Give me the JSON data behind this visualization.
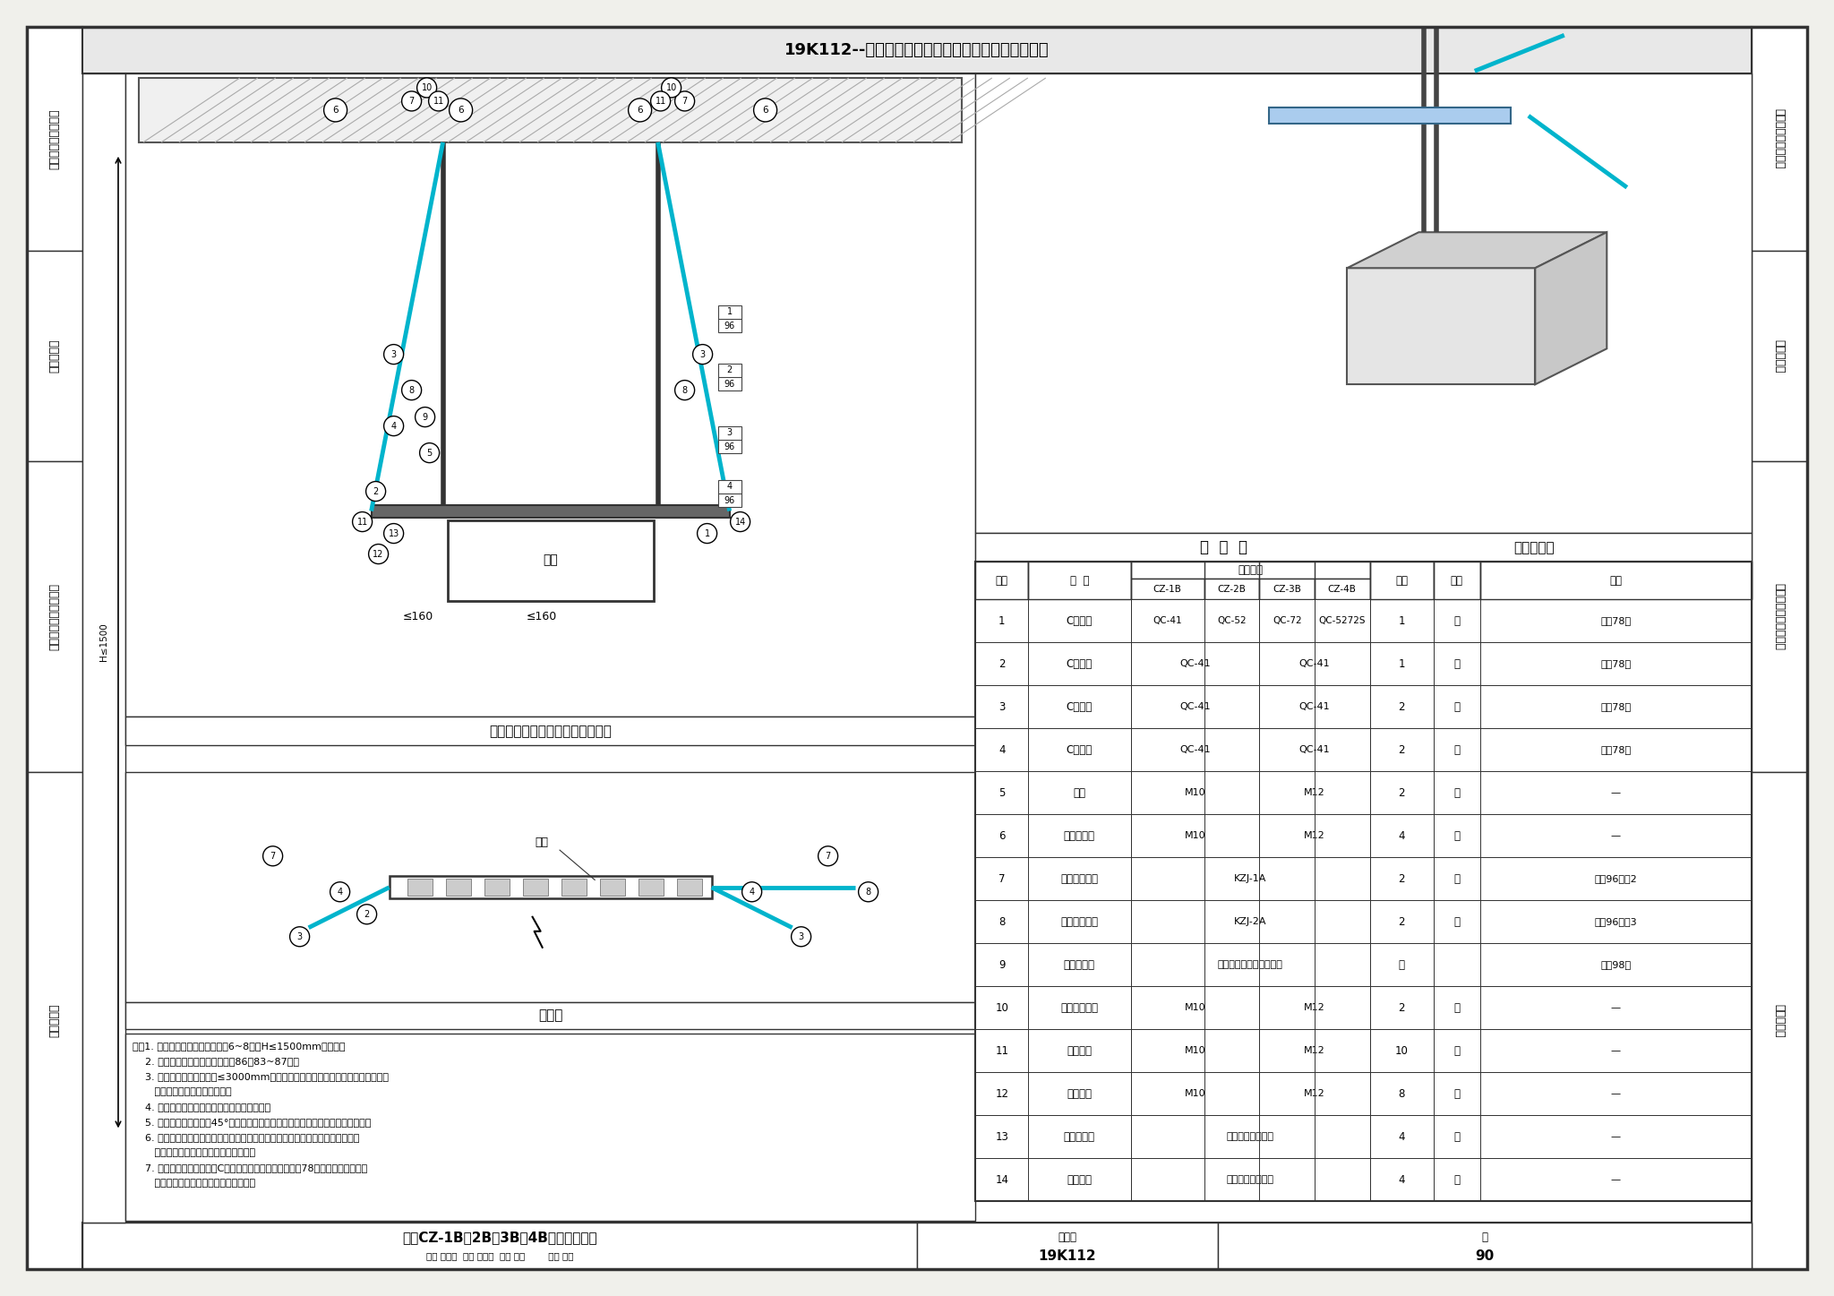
{
  "page_bg": "#f0f0eb",
  "content_bg": "#ffffff",
  "title_text": "19K112--金属、非金属风管支吸架（含抗震支吸架）",
  "left_sidebar_sections": [
    [
      "目录、总说明及图例",
      0.18
    ],
    [
      "传统支吸架",
      0.17
    ],
    [
      "金属风管装配式支吸架",
      0.25
    ],
    [
      "抗震支吸架",
      0.4
    ]
  ],
  "front_view_title": "矩形风管双侧向抗震支吸架正视图",
  "top_view_title": "俧视图",
  "table_title": "材  料  表",
  "td3_title": "三维示意图",
  "spec_sub_headers": [
    "CZ-1B",
    "CZ-2B",
    "CZ-3B",
    "CZ-4B"
  ],
  "table_rows": [
    [
      "1",
      "C型槽锂",
      "QC-41",
      "QC-52",
      "QC-72",
      "QC-5272S",
      "1",
      "件",
      "见由78页"
    ],
    [
      "2",
      "C型槽锂",
      "QC-41",
      "",
      "QC-41",
      "",
      "1",
      "件",
      "见由78页"
    ],
    [
      "3",
      "C型槽锂",
      "QC-41",
      "",
      "QC-41",
      "",
      "2",
      "件",
      "见由78页"
    ],
    [
      "4",
      "C型槽锂",
      "QC-41",
      "",
      "QC-41",
      "",
      "2",
      "件",
      "见由78页"
    ],
    [
      "5",
      "贓杆",
      "M10",
      "",
      "M12",
      "",
      "2",
      "件",
      "—"
    ],
    [
      "6",
      "扩底型锶栓",
      "M10",
      "",
      "M12",
      "",
      "4",
      "套",
      "—"
    ],
    [
      "7",
      "抗震连接构件",
      "KZJ-1A",
      "",
      "",
      "",
      "2",
      "套",
      "见由96页图2"
    ],
    [
      "8",
      "抗震连接构件",
      "KZJ-2A",
      "",
      "",
      "",
      "2",
      "套",
      "见由96页图3"
    ],
    [
      "9",
      "贓杆紧固件",
      "根据贓杆直径及长度确定",
      "",
      "",
      "",
      "套",
      "",
      "见由98页"
    ],
    [
      "10",
      "六角连接贚母",
      "M10",
      "",
      "M12",
      "",
      "2",
      "个",
      "—"
    ],
    [
      "11",
      "六角贚母",
      "M10",
      "",
      "M12",
      "",
      "10",
      "个",
      "—"
    ],
    [
      "12",
      "槽锂垫板",
      "M10",
      "",
      "M12",
      "",
      "8",
      "个",
      "—"
    ],
    [
      "13",
      "风管固定件",
      "根据风管规格确定",
      "",
      "",
      "",
      "4",
      "套",
      "—"
    ],
    [
      "14",
      "槽锂端盖",
      "根据槽锂规格确定",
      "",
      "",
      "",
      "4",
      "个",
      "—"
    ]
  ],
  "notes": [
    "注：1. 本图适用于抗震设防烈度为6~8度，H≤1500mm的工程。",
    "    2. 风管抗震支吸架选用见本图雅86第83~87页。",
    "    3. 当管道承重支吸架间距≤3000mm时，本图抗震支吸架的布置和承重支吸架重合",
    "       时，可替代一个承重支吸架。",
    "    4. 图中「蓝色」表示的部分为侧向抗震斜撑。",
    "    5. 抗震斜撑安装角度为45°。若安装空间受限时，可调整安装角度，须进行验算。",
    "    6. 当工程设计中所选用的材料与本图集总说明不一致时，应按采用的材料核核杆",
    "       件、连接件的强度和刚度后方可使用。",
    "    7. 当工程设计中所选用的C型槽锂的规格及截面特性与由78页中的技术参数不一",
    "       致时，应按实际参数核核后方可使用。"
  ],
  "bottom_drawing_name": "柔性CZ-1B、2B、3B、4B抗震支吸架图",
  "bottom_review": "审核 许远超  审定 许远超  校对 秦疑        设计 秦鑫",
  "bottom_atlas": "图集号",
  "bottom_atlas_val": "19K112",
  "bottom_page_label": "页",
  "bottom_page_val": "90",
  "highlight_color": "#00b4cc",
  "border_color": "#333333",
  "hatch_color": "#888888",
  "sidebar_bg": "#ffffff"
}
